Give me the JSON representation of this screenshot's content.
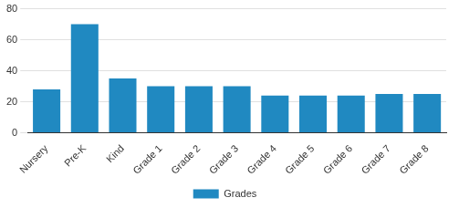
{
  "chart_data": {
    "type": "bar",
    "categories": [
      "Nursery",
      "Pre-K",
      "Kind",
      "Grade 1",
      "Grade 2",
      "Grade 3",
      "Grade 4",
      "Grade 5",
      "Grade 6",
      "Grade 7",
      "Grade 8"
    ],
    "series": [
      {
        "name": "Grades",
        "color": "#2089c1",
        "values": [
          28,
          70,
          35,
          30,
          30,
          30,
          24,
          24,
          24,
          25,
          25
        ]
      }
    ],
    "ylim": [
      0,
      80
    ],
    "yticks": [
      0,
      20,
      40,
      60,
      80
    ],
    "grid": true,
    "legend": "bottom"
  }
}
